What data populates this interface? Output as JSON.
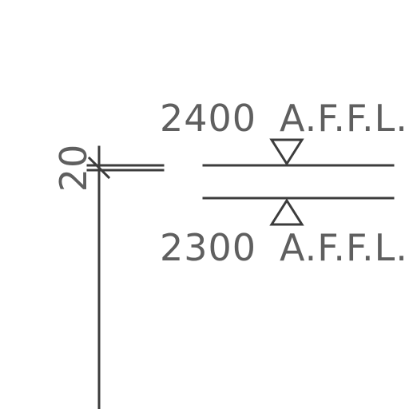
{
  "levels": {
    "upper": {
      "value": "2400",
      "label": "A.F.F.L."
    },
    "lower": {
      "value": "2300",
      "label": "A.F.F.L."
    }
  },
  "dimension": {
    "value": "20"
  },
  "colors": {
    "line": "#3c3c3c",
    "text": "#5f5f5f",
    "background": "#ffffff"
  },
  "icons": {
    "level_marker_upper": "triangle-down",
    "level_marker_lower": "triangle-up"
  }
}
